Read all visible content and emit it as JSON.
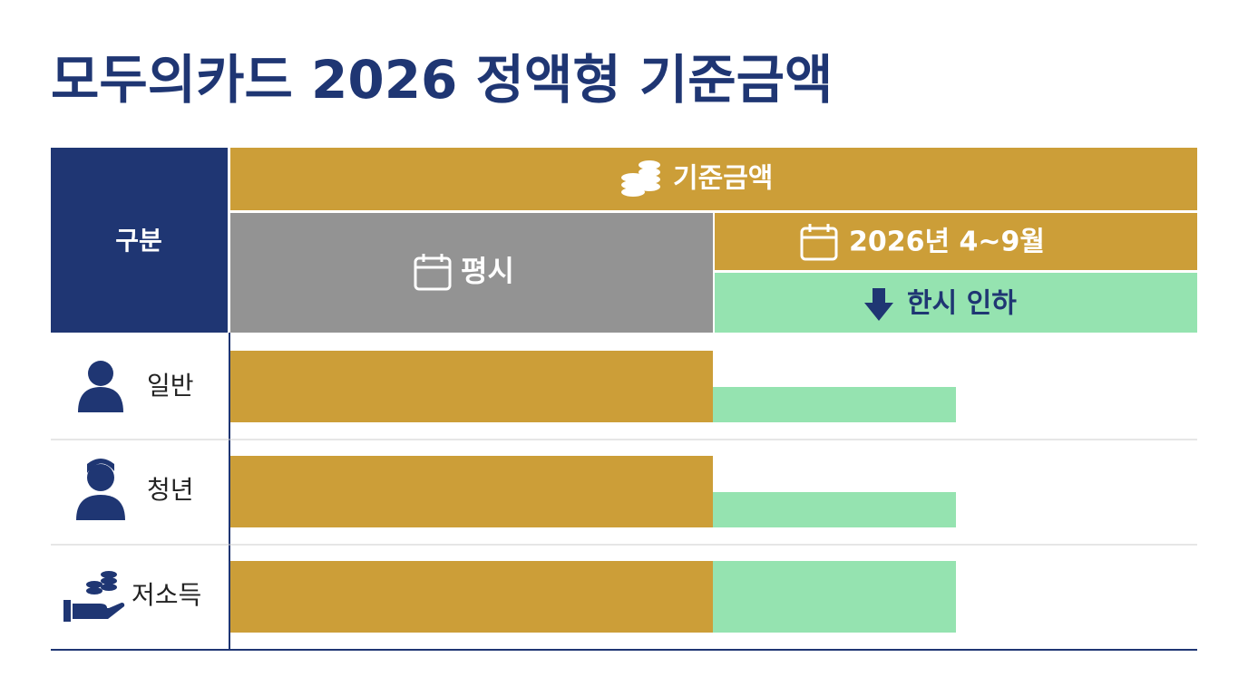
{
  "title": "모두의카드 2026 정액형 기준금액",
  "table": {
    "header": {
      "stub": "구분",
      "group": "기준금액",
      "normal": "평시",
      "period": "2026년 4~9월",
      "temporary": "한시 인하"
    },
    "rows": [
      {
        "label": "일반"
      },
      {
        "label": "청년"
      },
      {
        "label": "저소득"
      }
    ]
  }
}
